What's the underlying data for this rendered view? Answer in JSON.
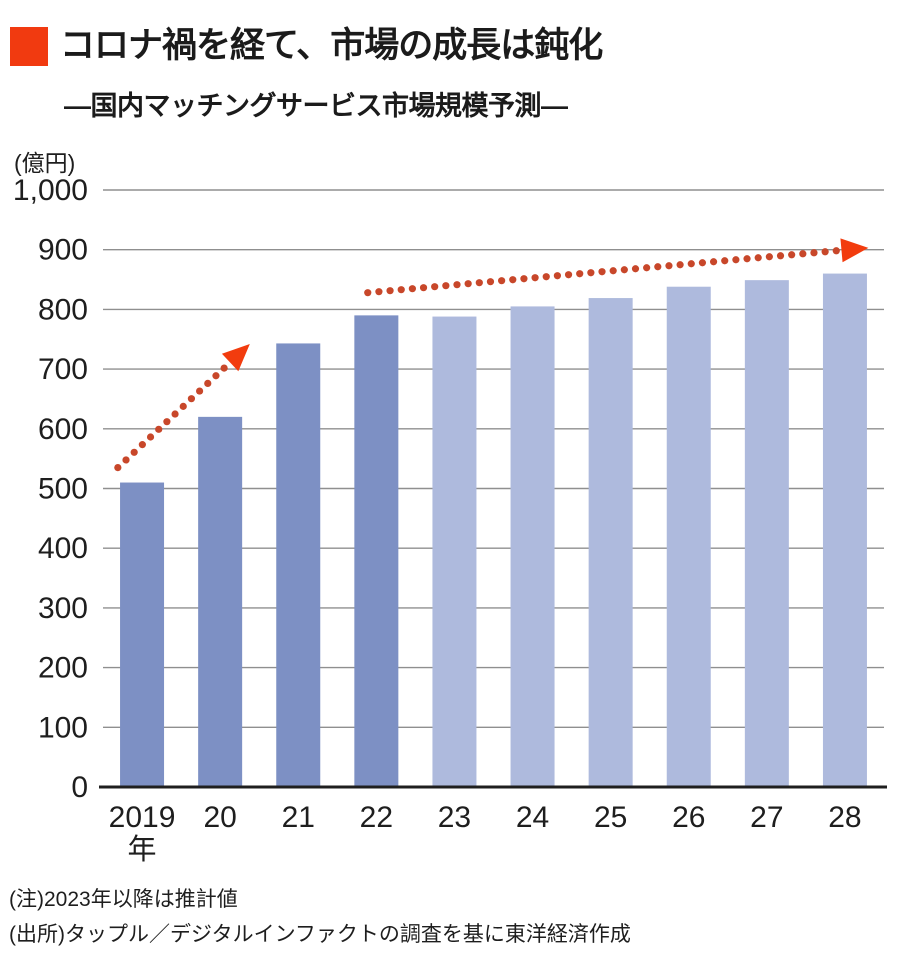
{
  "header": {
    "accent_color": "#f13a10",
    "title": "コロナ禍を経て、市場の成長は鈍化",
    "subtitle": "―国内マッチングサービス市場規模予測―"
  },
  "chart_data": {
    "type": "bar",
    "title": "コロナ禍を経て、市場の成長は鈍化",
    "subtitle": "国内マッチングサービス市場規模予測",
    "ylabel_unit": "(億円)",
    "xlabel": "",
    "ylabel": "",
    "categories": [
      "2019年",
      "20",
      "21",
      "22",
      "23",
      "24",
      "25",
      "26",
      "27",
      "28"
    ],
    "x_tick_labels": [
      "2019",
      "20",
      "21",
      "22",
      "23",
      "24",
      "25",
      "26",
      "27",
      "28"
    ],
    "x_first_tick_suffix": "年",
    "values": [
      510,
      620,
      743,
      790,
      788,
      805,
      819,
      838,
      849,
      860
    ],
    "ylim": [
      0,
      1000
    ],
    "ytick_step": 100,
    "grid": true,
    "legend_position": "none",
    "actual_color": "#7d90c4",
    "forecast_color": "#aebadd",
    "forecast_start_index": 4,
    "gridline_color": "#8f8f8f",
    "axis_color": "#1f1f1f",
    "annotations": [
      {
        "label": "rapid-growth-arrow",
        "from": {
          "x_index": -0.31,
          "value": 535
        },
        "to": {
          "x_index": 1.38,
          "value": 742
        },
        "dot_color": "#c8472a",
        "head_color": "#f23c0e"
      },
      {
        "label": "slowing-growth-arrow",
        "from": {
          "x_index": 2.89,
          "value": 828
        },
        "to": {
          "x_index": 9.3,
          "value": 903
        },
        "dot_color": "#c8472a",
        "head_color": "#f23c0e"
      }
    ]
  },
  "notes": [
    "(注)2023年以降は推計値",
    "(出所)タップル／デジタルインファクトの調査を基に東洋経済作成"
  ]
}
